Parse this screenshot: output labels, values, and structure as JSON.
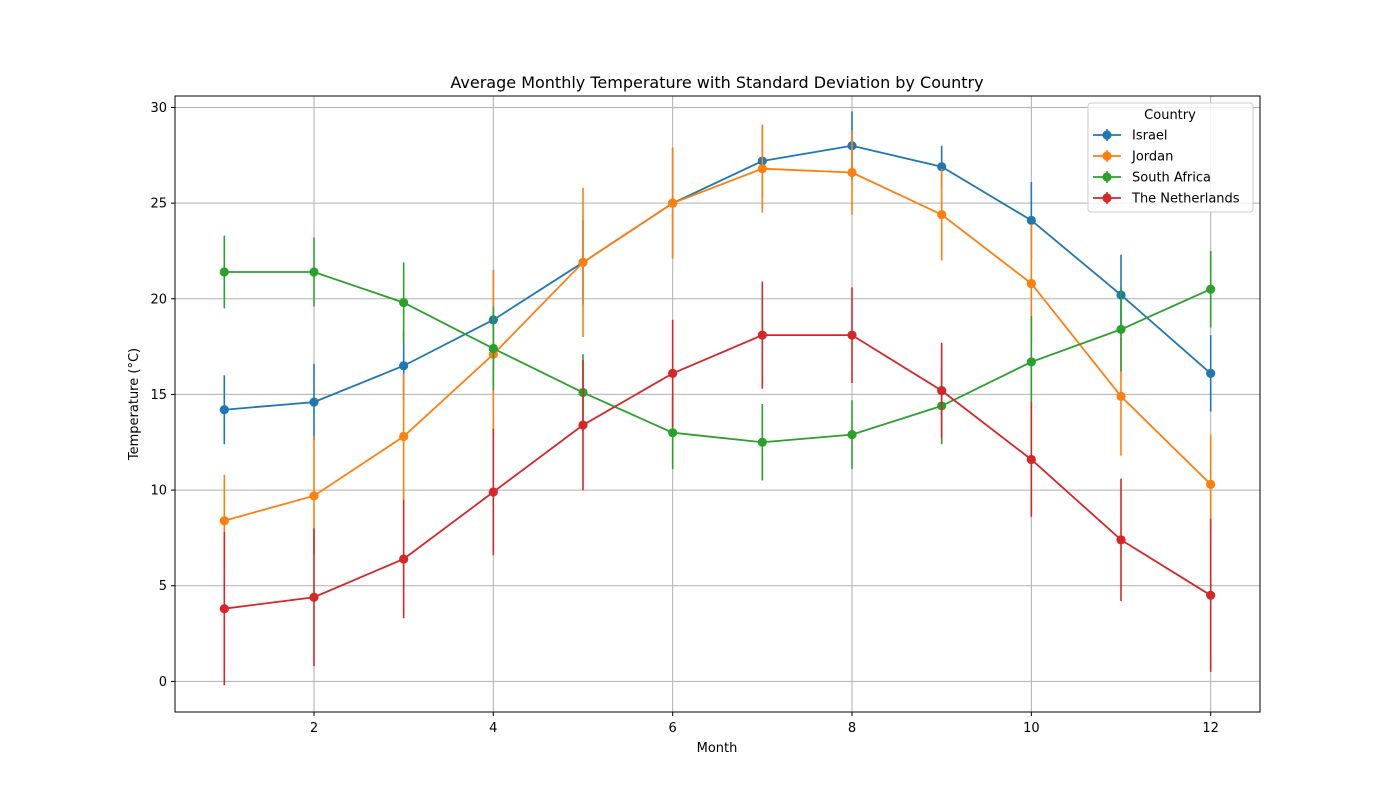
{
  "chart_data": {
    "type": "line",
    "title": "Average Monthly Temperature with Standard Deviation by Country",
    "xlabel": "Month",
    "ylabel": "Temperature (°C)",
    "x": [
      1,
      2,
      3,
      4,
      5,
      6,
      7,
      8,
      9,
      10,
      11,
      12
    ],
    "xlim": [
      0.45,
      12.55
    ],
    "ylim": [
      -1.6,
      30.6
    ],
    "xticks": [
      2,
      4,
      6,
      8,
      10,
      12
    ],
    "yticks": [
      0,
      5,
      10,
      15,
      20,
      25,
      30
    ],
    "grid": true,
    "legend": {
      "title": "Country",
      "placement": "top-right"
    },
    "series": [
      {
        "name": "Israel",
        "color": "#1f77b4",
        "values": [
          14.2,
          14.6,
          16.5,
          18.9,
          21.9,
          25.0,
          27.2,
          28.0,
          26.9,
          24.1,
          20.2,
          16.1
        ],
        "errors": [
          1.8,
          2.0,
          1.8,
          2.6,
          2.2,
          2.9,
          1.9,
          1.8,
          1.1,
          2.0,
          2.1,
          2.0
        ]
      },
      {
        "name": "Jordan",
        "color": "#ff7f0e",
        "values": [
          8.4,
          9.7,
          12.8,
          17.1,
          21.9,
          25.0,
          26.8,
          26.6,
          24.4,
          20.8,
          14.9,
          10.3
        ],
        "errors": [
          2.4,
          3.1,
          3.3,
          4.4,
          3.9,
          2.9,
          2.3,
          2.2,
          2.4,
          3.1,
          3.1,
          2.6
        ]
      },
      {
        "name": "South Africa",
        "color": "#2ca02c",
        "values": [
          21.4,
          21.4,
          19.8,
          17.4,
          15.1,
          13.0,
          12.5,
          12.9,
          14.4,
          16.7,
          18.4,
          20.5
        ],
        "errors": [
          1.9,
          1.8,
          2.1,
          2.2,
          2.0,
          1.9,
          2.0,
          1.8,
          2.0,
          2.4,
          2.2,
          2.0
        ]
      },
      {
        "name": "The Netherlands",
        "color": "#d62728",
        "values": [
          3.8,
          4.4,
          6.4,
          9.9,
          13.4,
          16.1,
          18.1,
          18.1,
          15.2,
          11.6,
          7.4,
          4.5
        ],
        "errors": [
          4.0,
          3.6,
          3.1,
          3.3,
          3.4,
          2.8,
          2.8,
          2.5,
          2.5,
          3.0,
          3.2,
          4.0
        ]
      }
    ]
  }
}
